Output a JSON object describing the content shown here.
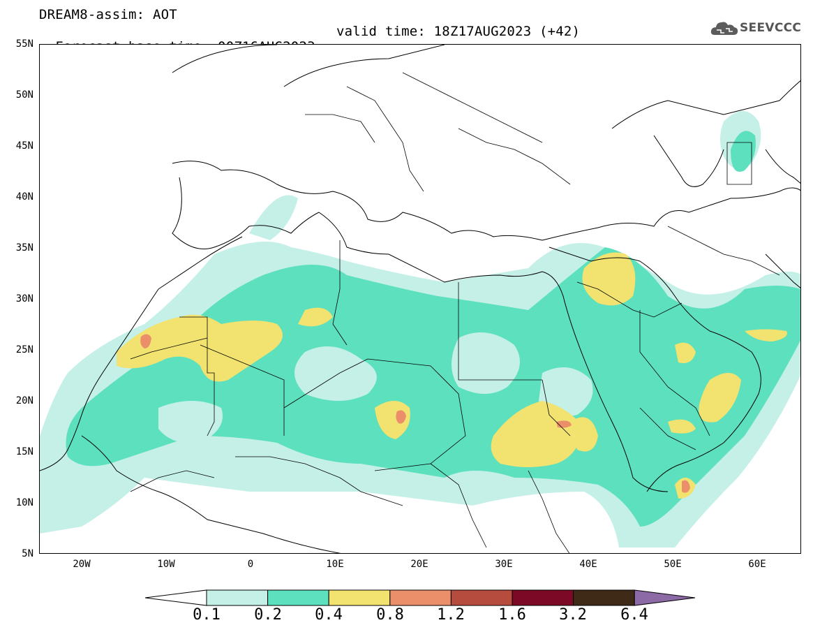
{
  "header": {
    "title_line1": "DREAM8-assim: AOT",
    "forecast_base": "Forecast base time: 00Z16AUG2023",
    "valid_time": "valid time: 18Z17AUG2023 (+42)"
  },
  "logo": {
    "text": "SEEVCCC",
    "icon": "cloud-icon"
  },
  "map": {
    "lat_labels": [
      "55N",
      "50N",
      "45N",
      "40N",
      "35N",
      "30N",
      "25N",
      "20N",
      "15N",
      "10N",
      "5N"
    ],
    "lon_labels": [
      "20W",
      "10W",
      "0",
      "10E",
      "20E",
      "30E",
      "40E",
      "50E",
      "60E"
    ],
    "extent": {
      "lon_min": -25,
      "lon_max": 65,
      "lat_min": 5,
      "lat_max": 55
    }
  },
  "legend": {
    "levels": [
      "0.1",
      "0.2",
      "0.4",
      "0.8",
      "1.2",
      "1.6",
      "3.2",
      "6.4"
    ],
    "colors": [
      "#ffffff",
      "#c4f0e8",
      "#5de0bd",
      "#f2e26f",
      "#eb8f6a",
      "#b54c3d",
      "#7c0a26",
      "#3e2a16",
      "#8b6aa6"
    ]
  }
}
